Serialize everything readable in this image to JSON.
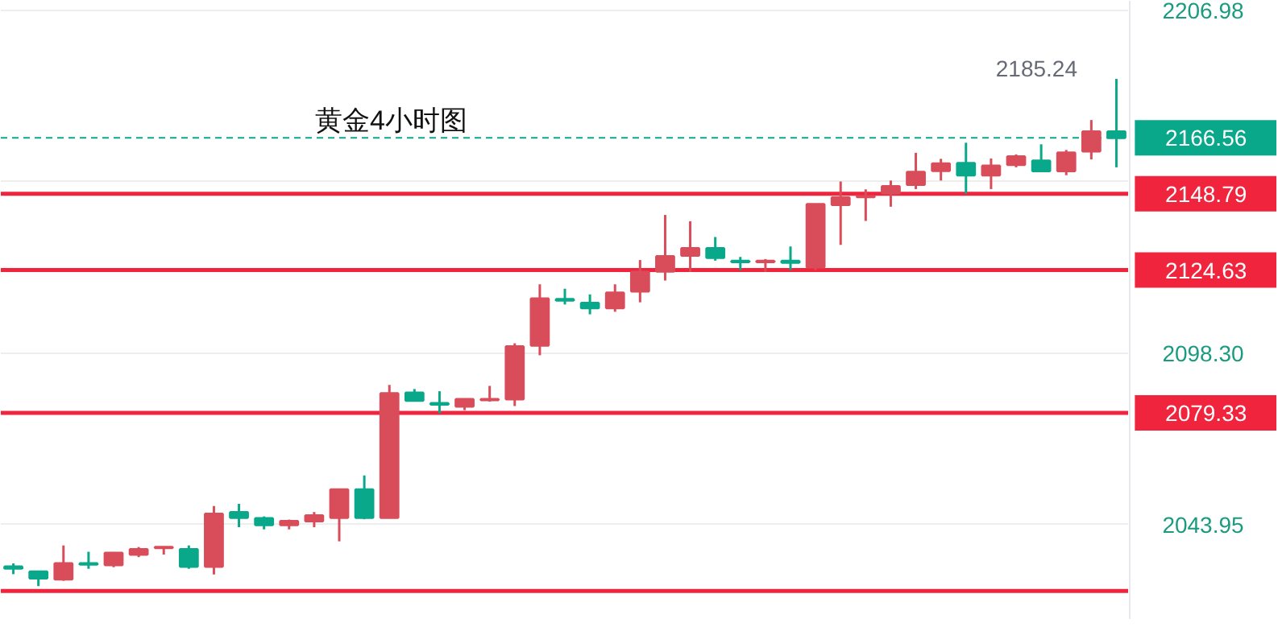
{
  "chart_data": {
    "type": "candlestick",
    "title": "黄金4小时图",
    "categories": [
      null,
      null,
      null,
      null,
      null,
      null,
      null,
      null,
      null,
      null,
      null,
      null,
      null,
      null,
      null,
      null,
      null,
      null,
      null,
      null,
      null,
      null,
      null,
      null,
      null,
      null,
      null,
      null,
      null,
      null,
      null,
      null,
      null,
      null,
      null,
      null,
      null,
      null,
      null,
      null,
      null,
      null,
      null,
      null,
      null
    ],
    "ohlc": [
      [
        2030.6,
        2031.6,
        2028.2,
        2030.0
      ],
      [
        2029.0,
        2029.3,
        2024.4,
        2026.9
      ],
      [
        2026.6,
        2037.3,
        2026.1,
        2031.6
      ],
      [
        2031.6,
        2035.3,
        2029.9,
        2031.3
      ],
      [
        2031.1,
        2035.2,
        2030.4,
        2034.9
      ],
      [
        2034.4,
        2036.8,
        2033.6,
        2036.1
      ],
      [
        2036.5,
        2036.9,
        2034.4,
        2036.8
      ],
      [
        2036.1,
        2037.3,
        2029.9,
        2030.6
      ],
      [
        2030.6,
        2049.8,
        2028.1,
        2047.3
      ],
      [
        2047.8,
        2050.5,
        2043.1,
        2046.1
      ],
      [
        2045.9,
        2046.5,
        2042.4,
        2043.8
      ],
      [
        2043.8,
        2045.5,
        2042.4,
        2045.0
      ],
      [
        2045.0,
        2047.9,
        2043.1,
        2046.8
      ],
      [
        2046.1,
        2055.0,
        2038.6,
        2055.0
      ],
      [
        2055.0,
        2059.5,
        2045.6,
        2046.1
      ],
      [
        2046.1,
        2088.2,
        2046.1,
        2085.5
      ],
      [
        2085.7,
        2086.9,
        2083.0,
        2083.2
      ],
      [
        2082.4,
        2086.2,
        2079.2,
        2082.0
      ],
      [
        2081.4,
        2083.7,
        2080.2,
        2083.7
      ],
      [
        2083.4,
        2087.9,
        2082.9,
        2083.7
      ],
      [
        2083.7,
        2101.4,
        2081.5,
        2100.4
      ],
      [
        2100.7,
        2120.1,
        2097.6,
        2115.6
      ],
      [
        2115.4,
        2118.7,
        2113.7,
        2115.0
      ],
      [
        2114.2,
        2116.9,
        2110.6,
        2112.6
      ],
      [
        2112.6,
        2120.1,
        2111.4,
        2117.4
      ],
      [
        2117.9,
        2127.8,
        2114.4,
        2124.0
      ],
      [
        2124.2,
        2142.1,
        2121.3,
        2129.0
      ],
      [
        2129.2,
        2140.1,
        2124.0,
        2131.5
      ],
      [
        2131.5,
        2135.1,
        2127.6,
        2128.5
      ],
      [
        2127.5,
        2128.8,
        2124.6,
        2127.2
      ],
      [
        2127.2,
        2128.1,
        2124.0,
        2127.5
      ],
      [
        2127.5,
        2132.1,
        2124.6,
        2127.0
      ],
      [
        2125.5,
        2145.5,
        2124.6,
        2145.5
      ],
      [
        2145.3,
        2152.7,
        2132.6,
        2147.6
      ],
      [
        2147.8,
        2150.2,
        2140.2,
        2148.0
      ],
      [
        2149.0,
        2153.0,
        2144.7,
        2151.2
      ],
      [
        2151.7,
        2161.8,
        2150.3,
        2155.7
      ],
      [
        2156.1,
        2159.9,
        2153.0,
        2158.4
      ],
      [
        2158.5,
        2165.0,
        2148.8,
        2154.7
      ],
      [
        2154.7,
        2160.0,
        2150.3,
        2157.7
      ],
      [
        2158.0,
        2161.3,
        2157.2,
        2160.6
      ],
      [
        2159.3,
        2164.5,
        2156.0,
        2156.0
      ],
      [
        2156.0,
        2162.7,
        2154.7,
        2161.8
      ],
      [
        2162.3,
        2172.2,
        2159.7,
        2168.5
      ],
      [
        2168.5,
        2185.24,
        2157.2,
        2166.56
      ]
    ],
    "colors": [
      "#0aa88a",
      "#0aa88a",
      "#d94c5a",
      "#0aa88a",
      "#d94c5a",
      "#d94c5a",
      "#d94c5a",
      "#0aa88a",
      "#d94c5a",
      "#0aa88a",
      "#0aa88a",
      "#d94c5a",
      "#d94c5a",
      "#d94c5a",
      "#0aa88a",
      "#d94c5a",
      "#0aa88a",
      "#0aa88a",
      "#d94c5a",
      "#d94c5a",
      "#d94c5a",
      "#d94c5a",
      "#0aa88a",
      "#0aa88a",
      "#d94c5a",
      "#d94c5a",
      "#d94c5a",
      "#d94c5a",
      "#0aa88a",
      "#0aa88a",
      "#d94c5a",
      "#0aa88a",
      "#d94c5a",
      "#d94c5a",
      "#d94c5a",
      "#d94c5a",
      "#d94c5a",
      "#d94c5a",
      "#0aa88a",
      "#d94c5a",
      "#d94c5a",
      "#0aa88a",
      "#d94c5a",
      "#d94c5a",
      "#0aa88a"
    ],
    "ylim": [
      2014,
      2210
    ],
    "yticks": [
      2043.95,
      {
        "value": 2098.3,
        "label": "2098.30"
      },
      {
        "value": 2152.65,
        "label": null
      },
      2206.98
    ],
    "ref_lines": [
      {
        "axis": "y",
        "value": 2166.56,
        "label": "2166.56",
        "color": "#0aa88a",
        "line_style": "dashed"
      },
      {
        "axis": "y",
        "value": 2148.79,
        "label": "2148.79",
        "color": "#f0243c"
      },
      {
        "axis": "y",
        "value": 2124.63,
        "label": "2124.63",
        "color": "#f0243c"
      },
      {
        "axis": "y",
        "value": 2079.33,
        "label": "2079.33",
        "color": "#f0243c"
      },
      {
        "axis": "y",
        "value": 2022.9,
        "label": null,
        "color": "#f0243c"
      }
    ],
    "annotations": [
      "2185.24"
    ],
    "grid": "y"
  }
}
